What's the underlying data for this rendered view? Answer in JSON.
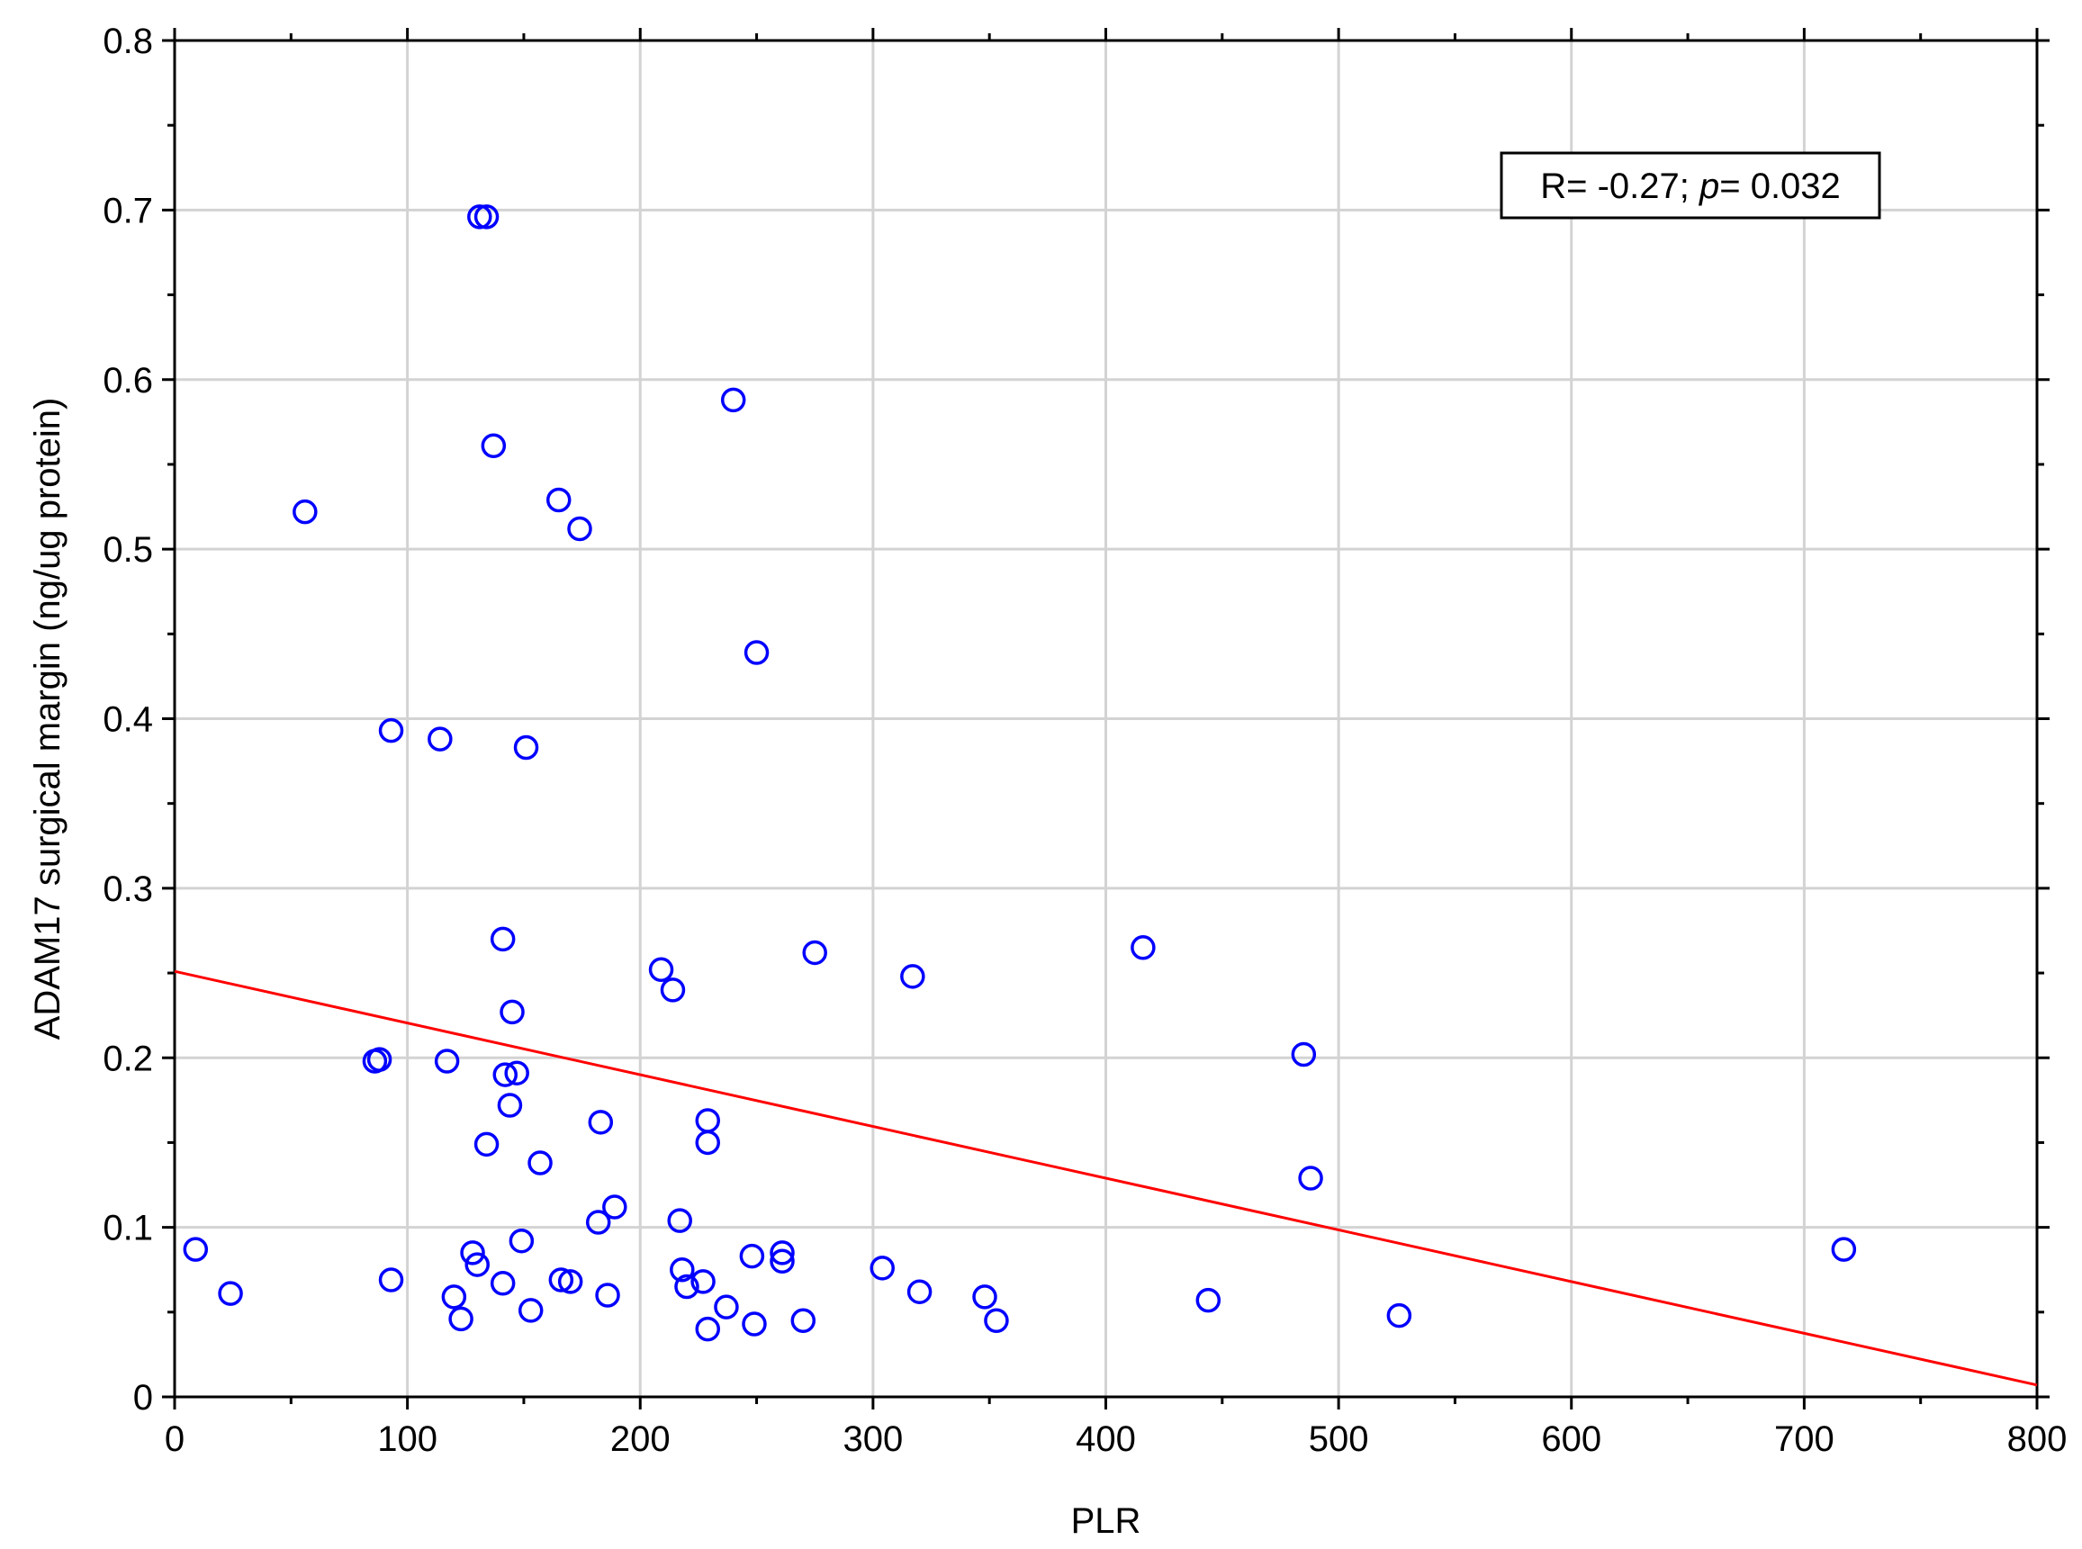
{
  "chart_data": {
    "type": "scatter",
    "title": "",
    "xlabel": "PLR",
    "ylabel": "ADAM17 surgical margin (ng/ug protein)",
    "xlim": [
      0,
      800
    ],
    "ylim": [
      0,
      0.8
    ],
    "x_ticks": [
      "0",
      "100",
      "200",
      "300",
      "400",
      "500",
      "600",
      "700",
      "800"
    ],
    "y_ticks": [
      "0",
      "0.1",
      "0.2",
      "0.3",
      "0.4",
      "0.5",
      "0.6",
      "0.7",
      "0.8"
    ],
    "grid": true,
    "annotation": {
      "prefix": "R= -0.27; ",
      "p_symbol": "p",
      "suffix": "= 0.032"
    },
    "colors": {
      "points": "#0000ff",
      "trend_line": "#ff0000",
      "grid": "#d3d3d3",
      "axis": "#000000"
    },
    "trend_line": {
      "x": [
        0,
        800
      ],
      "y": [
        0.251,
        0.007
      ]
    },
    "series": [
      {
        "points": [
          [
            9,
            0.087
          ],
          [
            24,
            0.061
          ],
          [
            56,
            0.522
          ],
          [
            86,
            0.198
          ],
          [
            88,
            0.199
          ],
          [
            93,
            0.393
          ],
          [
            93,
            0.069
          ],
          [
            114,
            0.388
          ],
          [
            117,
            0.198
          ],
          [
            120,
            0.059
          ],
          [
            123,
            0.046
          ],
          [
            128,
            0.085
          ],
          [
            130,
            0.078
          ],
          [
            131,
            0.696
          ],
          [
            134,
            0.696
          ],
          [
            134,
            0.149
          ],
          [
            137,
            0.561
          ],
          [
            141,
            0.27
          ],
          [
            141,
            0.067
          ],
          [
            142,
            0.19
          ],
          [
            144,
            0.172
          ],
          [
            145,
            0.227
          ],
          [
            147,
            0.191
          ],
          [
            149,
            0.092
          ],
          [
            151,
            0.383
          ],
          [
            153,
            0.051
          ],
          [
            157,
            0.138
          ],
          [
            165,
            0.529
          ],
          [
            166,
            0.069
          ],
          [
            170,
            0.068
          ],
          [
            174,
            0.512
          ],
          [
            182,
            0.103
          ],
          [
            183,
            0.162
          ],
          [
            186,
            0.06
          ],
          [
            189,
            0.112
          ],
          [
            209,
            0.252
          ],
          [
            214,
            0.24
          ],
          [
            217,
            0.104
          ],
          [
            218,
            0.075
          ],
          [
            220,
            0.065
          ],
          [
            227,
            0.068
          ],
          [
            229,
            0.163
          ],
          [
            229,
            0.15
          ],
          [
            229,
            0.04
          ],
          [
            237,
            0.053
          ],
          [
            240,
            0.588
          ],
          [
            248,
            0.083
          ],
          [
            249,
            0.043
          ],
          [
            250,
            0.439
          ],
          [
            261,
            0.085
          ],
          [
            261,
            0.08
          ],
          [
            270,
            0.045
          ],
          [
            275,
            0.262
          ],
          [
            304,
            0.076
          ],
          [
            317,
            0.248
          ],
          [
            320,
            0.062
          ],
          [
            348,
            0.059
          ],
          [
            353,
            0.045
          ],
          [
            416,
            0.265
          ],
          [
            444,
            0.057
          ],
          [
            485,
            0.202
          ],
          [
            488,
            0.129
          ],
          [
            526,
            0.048
          ],
          [
            717,
            0.087
          ]
        ]
      }
    ]
  }
}
